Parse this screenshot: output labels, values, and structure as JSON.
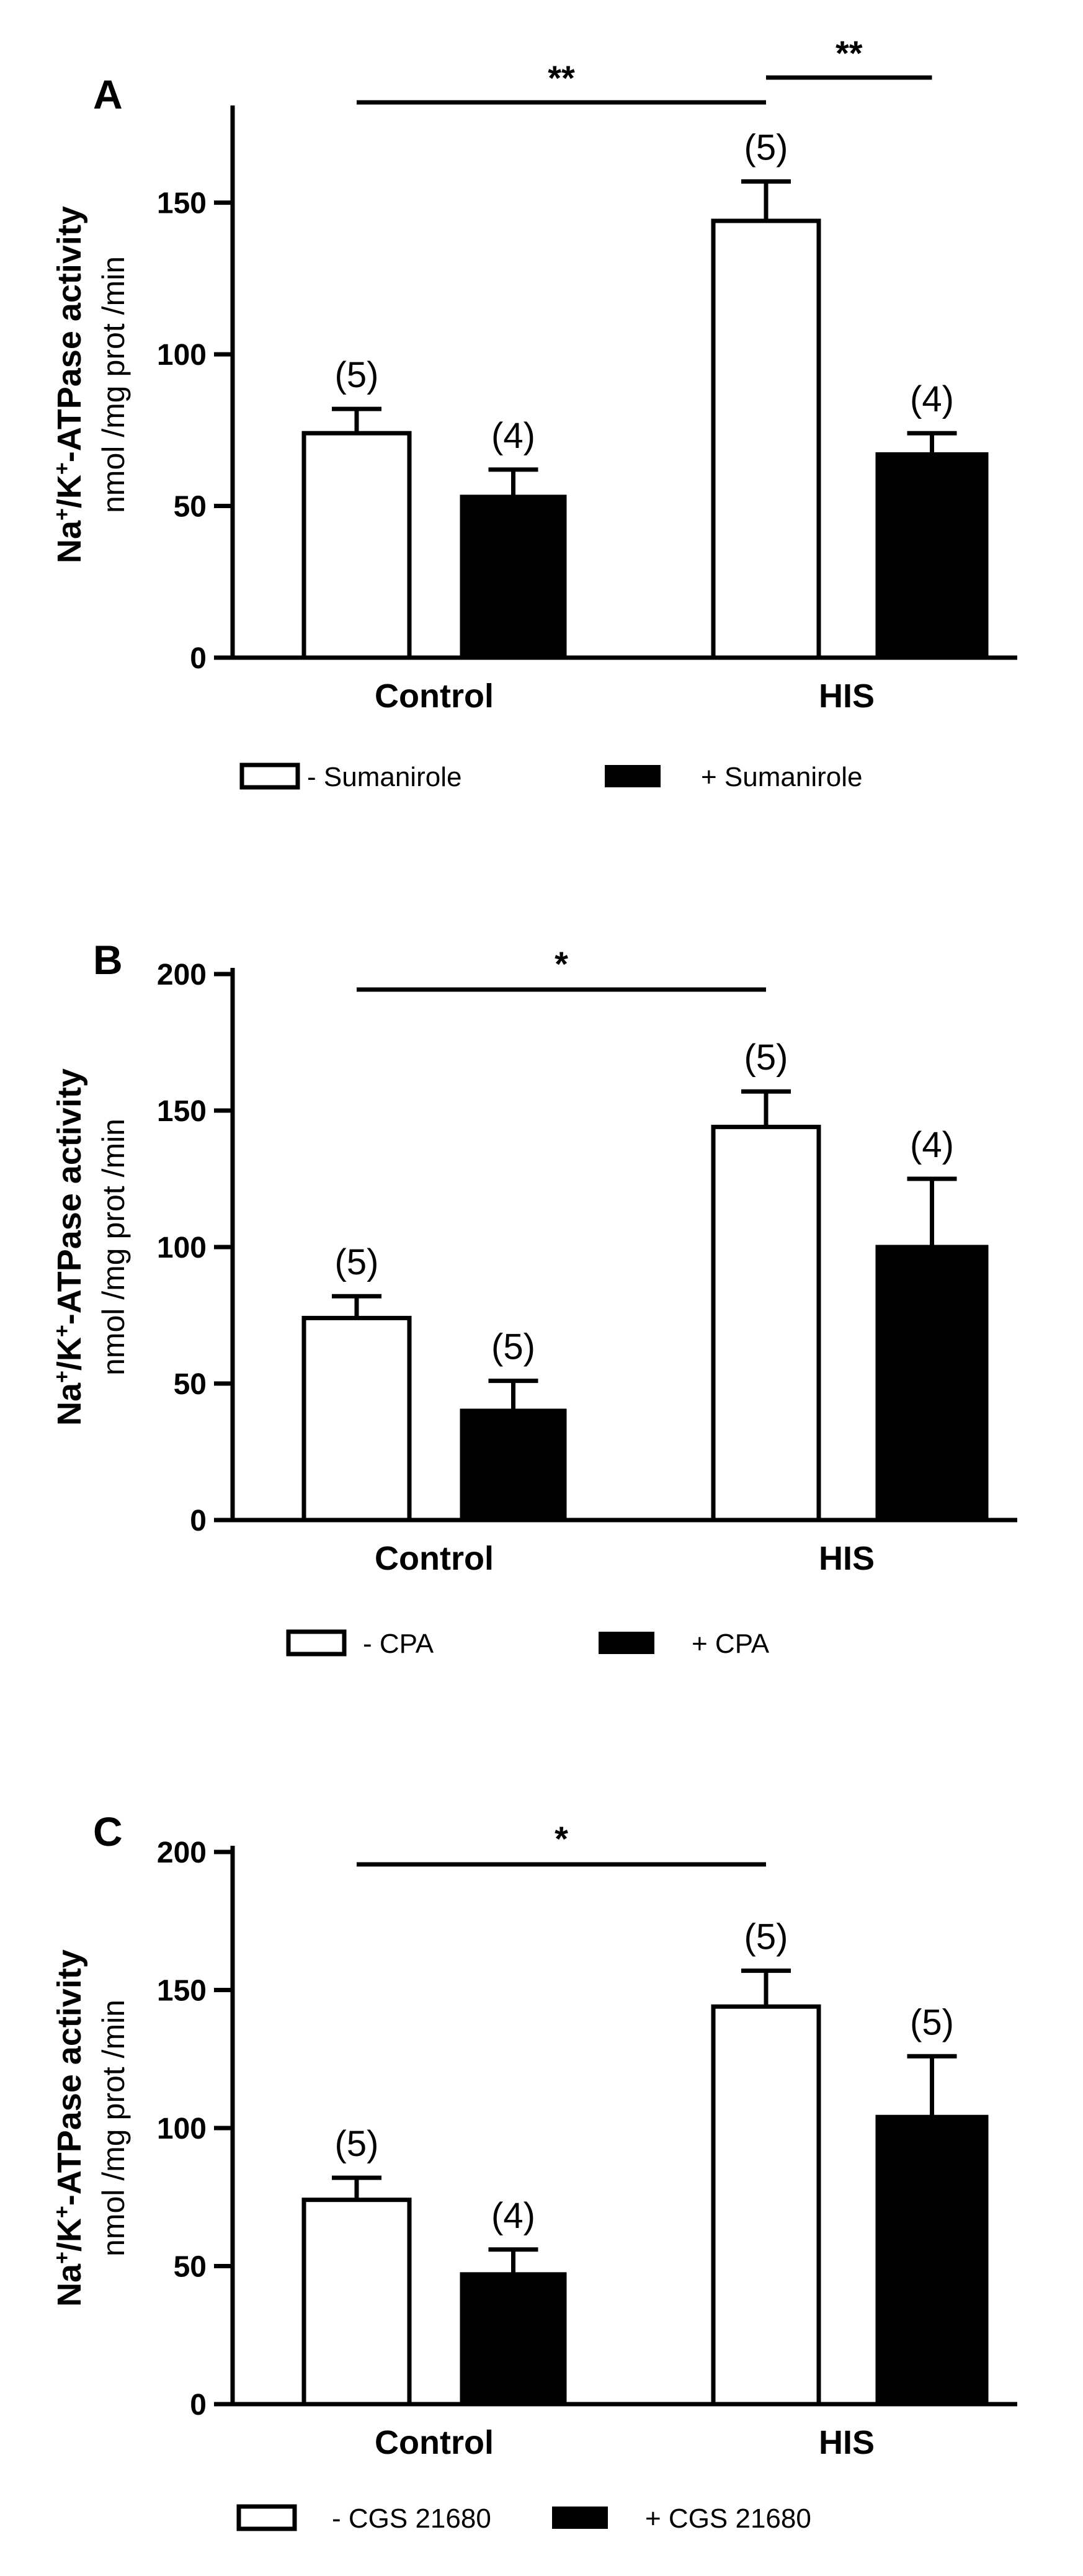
{
  "ylabel_part1": "Na",
  "ylabel_sup1": "+",
  "ylabel_part2": "/K",
  "ylabel_sup2": "+",
  "ylabel_part3": "-ATPase activity",
  "ylabel_units": "nmol /mg prot /min",
  "chart_data": [
    {
      "type": "bar",
      "panel": "A",
      "categories": [
        "Control",
        "HIS"
      ],
      "ylim": [
        0,
        180
      ],
      "yticks": [
        0,
        50,
        100,
        150
      ],
      "series": [
        {
          "name": "- Sumanirole",
          "values": [
            74,
            144
          ],
          "errors": [
            8,
            13
          ],
          "n_labels": [
            "(5)",
            "(5)"
          ]
        },
        {
          "name": "+ Sumanirole",
          "values": [
            53,
            67
          ],
          "errors": [
            9,
            7
          ],
          "n_labels": [
            "(4)",
            "(4)"
          ]
        }
      ],
      "significance": [
        {
          "from": "Control:- Sumanirole",
          "to": "HIS:- Sumanirole",
          "label": "**"
        },
        {
          "from": "HIS:- Sumanirole",
          "to": "HIS:+ Sumanirole",
          "label": "**"
        }
      ]
    },
    {
      "type": "bar",
      "panel": "B",
      "categories": [
        "Control",
        "HIS"
      ],
      "ylim": [
        0,
        200
      ],
      "yticks": [
        0,
        50,
        100,
        150,
        200
      ],
      "series": [
        {
          "name": "- CPA",
          "values": [
            74,
            144
          ],
          "errors": [
            8,
            13
          ],
          "n_labels": [
            "(5)",
            "(5)"
          ]
        },
        {
          "name": "+ CPA",
          "values": [
            40,
            100
          ],
          "errors": [
            11,
            25
          ],
          "n_labels": [
            "(5)",
            "(4)"
          ]
        }
      ],
      "significance": [
        {
          "from": "Control:- CPA",
          "to": "HIS:- CPA",
          "label": "*"
        }
      ]
    },
    {
      "type": "bar",
      "panel": "C",
      "categories": [
        "Control",
        "HIS"
      ],
      "ylim": [
        0,
        200
      ],
      "yticks": [
        0,
        50,
        100,
        150,
        200
      ],
      "series": [
        {
          "name": "- CGS 21680",
          "values": [
            74,
            144
          ],
          "errors": [
            8,
            13
          ],
          "n_labels": [
            "(5)",
            "(5)"
          ]
        },
        {
          "name": "+ CGS 21680",
          "values": [
            47,
            104
          ],
          "errors": [
            9,
            22
          ],
          "n_labels": [
            "(4)",
            "(5)"
          ]
        }
      ],
      "significance": [
        {
          "from": "Control:- CGS 21680",
          "to": "HIS:- CGS 21680",
          "label": "*"
        }
      ]
    }
  ]
}
